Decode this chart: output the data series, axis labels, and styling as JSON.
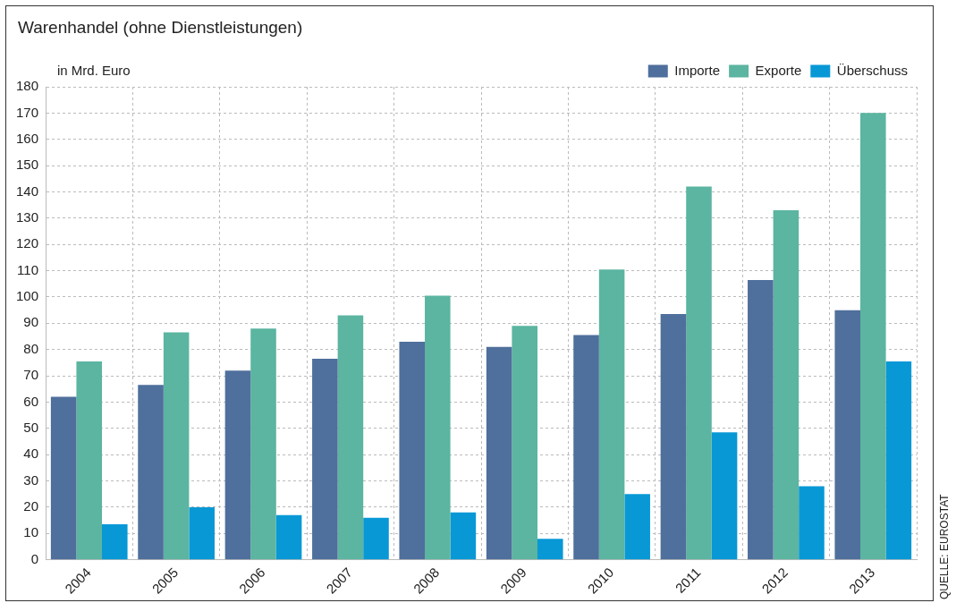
{
  "chart_data": {
    "type": "bar",
    "title": "Warenhandel (ohne Dienstleistungen)",
    "ylabel": "in Mrd. Euro",
    "categories": [
      "2004",
      "2005",
      "2006",
      "2007",
      "2008",
      "2009",
      "2010",
      "2011",
      "2012",
      "2013"
    ],
    "series": [
      {
        "name": "Importe",
        "color": "#4f6f9c",
        "values": [
          62,
          66.5,
          72,
          76.5,
          83,
          81,
          85.5,
          93.5,
          106.5,
          95
        ]
      },
      {
        "name": "Exporte",
        "color": "#5bb5a0",
        "values": [
          75.5,
          86.5,
          88,
          93,
          100.5,
          89,
          110.5,
          142,
          133,
          170
        ]
      },
      {
        "name": "Überschuss",
        "color": "#0898d6",
        "values": [
          13.5,
          20,
          17,
          16,
          18,
          8,
          25,
          48.5,
          28,
          75.5
        ]
      }
    ],
    "ylim": [
      0,
      180
    ],
    "yticks": [
      0,
      10,
      20,
      30,
      40,
      50,
      60,
      70,
      80,
      90,
      100,
      110,
      120,
      130,
      140,
      150,
      160,
      170,
      180
    ],
    "grid": true,
    "legend": "top right",
    "annotations": [
      "QUELLE: EUROSTAT"
    ]
  }
}
